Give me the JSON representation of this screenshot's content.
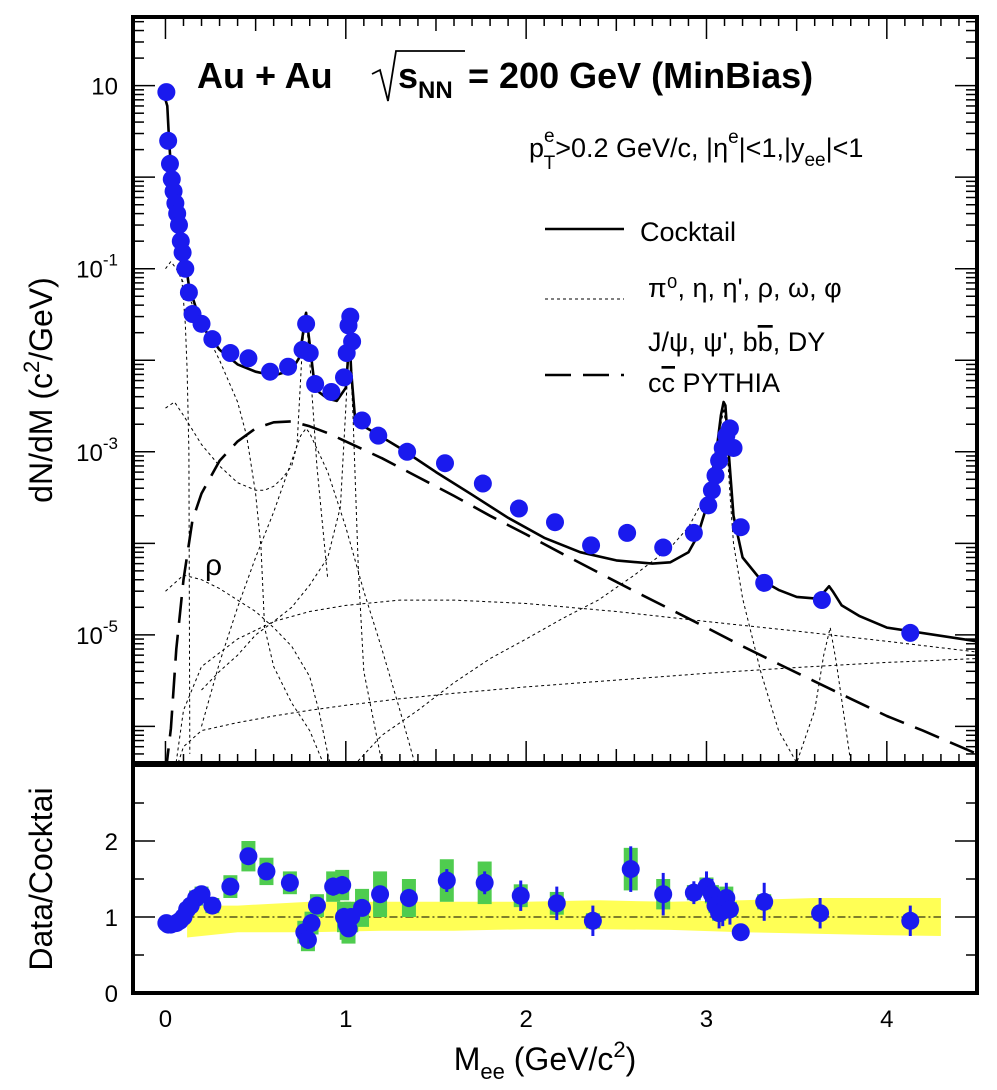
{
  "chart_data": [
    {
      "type": "scatter",
      "panel": "top",
      "title": "Au + Au √s_NN = 200 GeV (MinBias)",
      "title_parts": {
        "system": "Au + Au",
        "sqrt_s": "s",
        "sqrt_sub": "NN",
        "energy": "= 200 GeV (MinBias)"
      },
      "cuts": {
        "p": "p",
        "p_sup": "e",
        "p_sub": "T",
        "p_rest": ">0.2 GeV/c, |η",
        "eta_sup": "e",
        "eta_rest": "|<1,|y",
        "y_sub": "ee",
        "y_rest": "|<1"
      },
      "xlabel": "M_ee (GeV/c²)",
      "ylabel": "dN/dM (c²/GeV)",
      "ylabel_parts": {
        "main": "dN/dM (c",
        "sup": "2",
        "rest": "/GeV)"
      },
      "xlim": [
        -0.18,
        4.5
      ],
      "ylim_log10": [
        -6.4,
        1.75
      ],
      "yscale": "log",
      "yticks": [
        {
          "exp": -5,
          "base": "10",
          "sup": "-5"
        },
        {
          "exp": -3,
          "base": "10",
          "sup": "-3"
        },
        {
          "exp": -1,
          "base": "10",
          "sup": "-1"
        },
        {
          "exp": 1,
          "base": "10",
          "sup": ""
        }
      ],
      "annotation": "ρ",
      "legend": {
        "placement": "right",
        "cocktail": "Cocktail",
        "light": "π⁰, η, η', ρ, ω, φ",
        "heavy_a": "J/ψ, ψ', b",
        "heavy_bbar": "b",
        "heavy_b": ", DY",
        "charm_c": "c",
        "charm_cbar": "c",
        "charm_rest": " PYTHIA"
      },
      "colors": {
        "data": "#1a1aee",
        "syst": "#4fcc4f"
      },
      "series": [
        {
          "name": "Data",
          "x": [
            0.005,
            0.015,
            0.025,
            0.035,
            0.045,
            0.055,
            0.065,
            0.075,
            0.085,
            0.095,
            0.11,
            0.13,
            0.15,
            0.2,
            0.26,
            0.36,
            0.46,
            0.58,
            0.68,
            0.76,
            0.78,
            0.8,
            0.83,
            0.92,
            0.99,
            1.005,
            1.015,
            1.025,
            1.035,
            1.09,
            1.18,
            1.34,
            1.55,
            1.76,
            1.96,
            2.16,
            2.36,
            2.56,
            2.76,
            2.93,
            3.01,
            3.03,
            3.05,
            3.07,
            3.09,
            3.11,
            3.13,
            3.15,
            3.19,
            3.32,
            3.64,
            4.13
          ],
          "y": [
            8.5,
            2.5,
            1.4,
            0.95,
            0.7,
            0.52,
            0.4,
            0.3,
            0.2,
            0.15,
            0.1,
            0.055,
            0.032,
            0.025,
            0.017,
            0.012,
            0.0105,
            0.0075,
            0.0085,
            0.013,
            0.025,
            0.012,
            0.0055,
            0.0045,
            0.0065,
            0.012,
            0.024,
            0.03,
            0.016,
            0.0022,
            0.0015,
            0.001,
            0.00075,
            0.00045,
            0.00024,
            0.00017,
            9.5e-05,
            0.00013,
            9e-05,
            0.00013,
            0.00026,
            0.00038,
            0.00055,
            0.0008,
            0.0011,
            0.0015,
            0.0018,
            0.0011,
            0.00015,
            3.7e-05,
            2.4e-05,
            1.05e-05
          ]
        },
        {
          "name": "Cocktail",
          "style": "solid",
          "x": [
            0.0,
            0.01,
            0.02,
            0.03,
            0.05,
            0.07,
            0.1,
            0.13,
            0.2,
            0.3,
            0.4,
            0.5,
            0.6,
            0.7,
            0.74,
            0.76,
            0.775,
            0.78,
            0.79,
            0.82,
            0.85,
            0.9,
            0.95,
            1.0,
            1.01,
            1.015,
            1.02,
            1.025,
            1.03,
            1.05,
            1.1,
            1.3,
            1.5,
            1.7,
            1.9,
            2.1,
            2.3,
            2.5,
            2.7,
            2.8,
            2.9,
            2.95,
            3.0,
            3.03,
            3.06,
            3.08,
            3.095,
            3.105,
            3.12,
            3.15,
            3.2,
            3.3,
            3.4,
            3.5,
            3.6,
            3.65,
            3.68,
            3.7,
            3.75,
            3.85,
            4.0,
            4.5
          ],
          "y": [
            7,
            6,
            2.5,
            1.3,
            0.6,
            0.35,
            0.17,
            0.065,
            0.024,
            0.013,
            0.009,
            0.0075,
            0.0068,
            0.0078,
            0.0105,
            0.018,
            0.03,
            0.033,
            0.022,
            0.007,
            0.0045,
            0.0038,
            0.0036,
            0.005,
            0.009,
            0.015,
            0.02,
            0.012,
            0.0075,
            0.0025,
            0.0019,
            0.0011,
            0.0006,
            0.00034,
            0.00019,
            0.000115,
            8e-05,
            6.5e-05,
            6e-05,
            6.2e-05,
            8e-05,
            0.00012,
            0.00025,
            0.00055,
            0.0012,
            0.0025,
            0.0035,
            0.0032,
            0.0012,
            0.0002,
            7e-05,
            4e-05,
            3.1e-05,
            2.6e-05,
            2.5e-05,
            2.9e-05,
            3.4e-05,
            3e-05,
            2.1e-05,
            1.6e-05,
            1.2e-05,
            8.5e-06
          ]
        },
        {
          "name": "c̅c PYTHIA",
          "style": "long-dash",
          "x": [
            0.0,
            0.03,
            0.06,
            0.1,
            0.15,
            0.2,
            0.3,
            0.4,
            0.5,
            0.6,
            0.7,
            0.8,
            0.9,
            1.0,
            1.2,
            1.4,
            1.6,
            1.8,
            2.0,
            2.2,
            2.4,
            2.6,
            2.8,
            3.0,
            3.2,
            3.4,
            3.6,
            3.8,
            4.0,
            4.2,
            4.5
          ],
          "y": [
            3e-07,
            9.5e-07,
            7e-06,
            4e-05,
            0.00018,
            0.00035,
            0.0008,
            0.0013,
            0.0018,
            0.0021,
            0.00215,
            0.0019,
            0.0016,
            0.0013,
            0.00085,
            0.00053,
            0.00033,
            0.0002,
            0.000125,
            7.7e-05,
            4.8e-05,
            3e-05,
            1.9e-05,
            1.2e-05,
            7.5e-06,
            4.8e-06,
            3.1e-06,
            2e-06,
            1.3e-06,
            9e-07,
            5e-07
          ]
        },
        {
          "name": "π⁰ Dalitz",
          "style": "dotted",
          "x": [
            0.0,
            0.01,
            0.03,
            0.05,
            0.07,
            0.09,
            0.11,
            0.12,
            0.13,
            0.135
          ],
          "y": [
            7,
            6,
            1.2,
            0.45,
            0.2,
            0.08,
            0.025,
            0.008,
            0.001,
            5e-07
          ]
        },
        {
          "name": "η Dalitz",
          "style": "dotted",
          "x": [
            0.0,
            0.03,
            0.06,
            0.1,
            0.15,
            0.2,
            0.3,
            0.4,
            0.45,
            0.5,
            0.53,
            0.55,
            0.6,
            0.7,
            0.8,
            0.9
          ],
          "y": [
            0.1,
            0.12,
            0.1,
            0.07,
            0.04,
            0.025,
            0.01,
            0.0035,
            0.0015,
            0.00035,
            9e-05,
            1.2e-05,
            4.5e-06,
            1.8e-06,
            9e-07,
            3e-07
          ]
        },
        {
          "name": "ω Dalitz",
          "style": "dotted",
          "x": [
            0.0,
            0.05,
            0.1,
            0.2,
            0.3,
            0.4,
            0.5,
            0.55,
            0.6,
            0.65,
            0.7,
            0.73,
            0.76,
            0.78,
            0.8,
            0.84,
            0.9
          ],
          "y": [
            0.003,
            0.0035,
            0.0025,
            0.0012,
            0.0007,
            0.00046,
            0.00038,
            0.00038,
            0.00042,
            0.00052,
            0.0007,
            0.0012,
            0.015,
            0.03,
            0.01,
            0.0007,
            4e-05
          ]
        },
        {
          "name": "φ",
          "style": "dotted",
          "x": [
            0.2,
            0.3,
            0.4,
            0.5,
            0.6,
            0.7,
            0.8,
            0.9,
            0.97,
            1.0,
            1.02,
            1.04,
            1.07,
            1.1,
            1.2
          ],
          "y": [
            2.5e-06,
            4e-06,
            6e-06,
            1e-05,
            1.4e-05,
            2e-05,
            3.5e-05,
            7e-05,
            0.00025,
            0.003,
            0.018,
            0.0025,
            5e-05,
            4e-06,
            4e-07
          ]
        },
        {
          "name": "η' Dalitz",
          "style": "dotted",
          "x": [
            0.0,
            0.1,
            0.2,
            0.3,
            0.4,
            0.5,
            0.6,
            0.7,
            0.8,
            0.85,
            0.9,
            0.95
          ],
          "y": [
            3e-05,
            4.5e-05,
            4e-05,
            3.2e-05,
            2.4e-05,
            1.8e-05,
            1.2e-05,
            7.5e-06,
            3.5e-06,
            1.5e-06,
            5e-07,
            2e-07
          ]
        },
        {
          "name": "ρ",
          "style": "dotted",
          "x": [
            0.2,
            0.3,
            0.4,
            0.5,
            0.6,
            0.7,
            0.75,
            0.78,
            0.8,
            0.9,
            1.0,
            1.1,
            1.2,
            1.3,
            1.4
          ],
          "y": [
            1e-06,
            5e-06,
            2e-05,
            7e-05,
            0.00022,
            0.0008,
            0.0015,
            0.0018,
            0.0016,
            0.0006,
            0.00015,
            3e-05,
            7e-06,
            1.5e-06,
            3e-07
          ]
        },
        {
          "name": "J/ψ + ψ'",
          "style": "dotted",
          "x": [
            1.0,
            1.2,
            1.4,
            1.6,
            1.8,
            2.0,
            2.2,
            2.4,
            2.6,
            2.8,
            2.9,
            3.0,
            3.05,
            3.08,
            3.097,
            3.11,
            3.13,
            3.15,
            3.2,
            3.3,
            3.4,
            3.5,
            3.6,
            3.65,
            3.686,
            3.72,
            3.8,
            3.9
          ],
          "y": [
            3e-07,
            8e-07,
            1.5e-06,
            3e-06,
            5.5e-06,
            9e-06,
            1.5e-05,
            2.4e-05,
            4.5e-05,
            9e-05,
            0.00015,
            0.00035,
            0.0009,
            0.002,
            0.003,
            0.0015,
            0.00035,
            0.0001,
            2.5e-05,
            4e-06,
            9e-07,
            4e-07,
            1.5e-06,
            6e-06,
            1.2e-05,
            5e-06,
            4e-07,
            1e-07
          ]
        },
        {
          "name": "b b̅",
          "style": "dotted",
          "x": [
            0.05,
            0.1,
            0.2,
            0.4,
            0.6,
            0.8,
            1.0,
            1.3,
            1.6,
            2.0,
            2.5,
            3.0,
            3.5,
            4.0,
            4.5
          ],
          "y": [
            3e-07,
            1.5e-06,
            4.5e-06,
            9e-06,
            1.4e-05,
            1.8e-05,
            2.1e-05,
            2.4e-05,
            2.4e-05,
            2.2e-05,
            1.8e-05,
            1.4e-05,
            1.1e-05,
            8.5e-06,
            6.5e-06
          ]
        },
        {
          "name": "Drell-Yan",
          "style": "dotted",
          "x": [
            0.05,
            0.1,
            0.2,
            0.4,
            0.6,
            0.8,
            1.0,
            1.3,
            1.6,
            2.0,
            2.5,
            3.0,
            3.5,
            4.0,
            4.5
          ],
          "y": [
            3e-07,
            6e-07,
            9e-07,
            1.1e-06,
            1.3e-06,
            1.5e-06,
            1.7e-06,
            2e-06,
            2.3e-06,
            2.7e-06,
            3.2e-06,
            3.8e-06,
            4.4e-06,
            5e-06,
            5.5e-06
          ]
        }
      ]
    },
    {
      "type": "scatter",
      "panel": "bottom",
      "ylabel": "Data/Cocktai",
      "xlabel": "M_ee (GeV/c²)",
      "xlabel_parts": {
        "m": "M",
        "sub": "ee",
        "rest": " (GeV/c",
        "sup": "2",
        "close": ")"
      },
      "xlim": [
        -0.18,
        4.5
      ],
      "ylim": [
        0,
        3
      ],
      "xticks": [
        0,
        1,
        2,
        3,
        4
      ],
      "xtick_labels": [
        "0",
        "1",
        "2",
        "3",
        "4"
      ],
      "yticks": [
        0,
        1,
        2
      ],
      "ytick_labels": [
        "0",
        "1",
        "2"
      ],
      "reference_line": 1,
      "colors": {
        "data": "#1a1aee",
        "syst": "#4fcc4f",
        "band": "#ffff55"
      },
      "cocktail_uncertainty_band": {
        "x": [
          0.12,
          0.4,
          0.8,
          1.2,
          1.6,
          2.0,
          2.4,
          2.8,
          3.2,
          3.6,
          4.0,
          4.3
        ],
        "lower": [
          0.73,
          0.8,
          0.8,
          0.82,
          0.82,
          0.84,
          0.84,
          0.83,
          0.8,
          0.78,
          0.76,
          0.75
        ],
        "upper": [
          1.15,
          1.15,
          1.2,
          1.2,
          1.2,
          1.2,
          1.22,
          1.2,
          1.22,
          1.25,
          1.25,
          1.25
        ]
      },
      "series": [
        {
          "name": "Data/Cocktail",
          "x": [
            0.005,
            0.015,
            0.03,
            0.06,
            0.08,
            0.1,
            0.12,
            0.14,
            0.17,
            0.2,
            0.26,
            0.36,
            0.46,
            0.56,
            0.69,
            0.77,
            0.79,
            0.81,
            0.84,
            0.93,
            0.98,
            0.99,
            1.005,
            1.015,
            1.03,
            1.09,
            1.19,
            1.35,
            1.56,
            1.77,
            1.97,
            2.17,
            2.37,
            2.58,
            2.76,
            2.93,
            3.0,
            3.03,
            3.05,
            3.07,
            3.09,
            3.11,
            3.13,
            3.19,
            3.32,
            3.63,
            4.13
          ],
          "y": [
            0.92,
            0.9,
            0.9,
            0.92,
            0.95,
            1.0,
            1.1,
            1.15,
            1.25,
            1.3,
            1.15,
            1.4,
            1.8,
            1.6,
            1.45,
            0.8,
            0.7,
            0.92,
            1.15,
            1.4,
            1.42,
            1.0,
            0.9,
            0.85,
            1.0,
            1.12,
            1.3,
            1.25,
            1.48,
            1.45,
            1.28,
            1.18,
            0.95,
            1.63,
            1.3,
            1.32,
            1.4,
            1.3,
            1.15,
            1.05,
            1.08,
            1.25,
            1.1,
            0.8,
            1.2,
            1.05,
            0.95
          ],
          "stat_err": [
            0.05,
            0.05,
            0.05,
            0.05,
            0.05,
            0.05,
            0.05,
            0.06,
            0.07,
            0.07,
            0.08,
            0.1,
            0.1,
            0.1,
            0.1,
            0.1,
            0.12,
            0.12,
            0.1,
            0.12,
            0.12,
            0.12,
            0.1,
            0.1,
            0.1,
            0.1,
            0.1,
            0.12,
            0.15,
            0.15,
            0.2,
            0.22,
            0.2,
            0.3,
            0.28,
            0.15,
            0.2,
            0.2,
            0.2,
            0.2,
            0.2,
            0.2,
            0.2,
            0.1,
            0.25,
            0.2,
            0.2
          ],
          "syst_err": [
            0.05,
            0.05,
            0.05,
            0.05,
            0.05,
            0.05,
            0.08,
            0.08,
            0.1,
            0.1,
            0.1,
            0.15,
            0.2,
            0.18,
            0.15,
            0.15,
            0.15,
            0.15,
            0.15,
            0.2,
            0.2,
            0.2,
            0.2,
            0.2,
            0.2,
            0.25,
            0.3,
            0.25,
            0.28,
            0.28,
            0.15,
            0.15,
            0.1,
            0.28,
            0.2,
            0.1,
            0.12,
            0.12,
            0.1,
            0.1,
            0.1,
            0.15,
            0.1,
            0.05,
            0.1,
            0.08,
            0.08
          ]
        }
      ]
    }
  ]
}
